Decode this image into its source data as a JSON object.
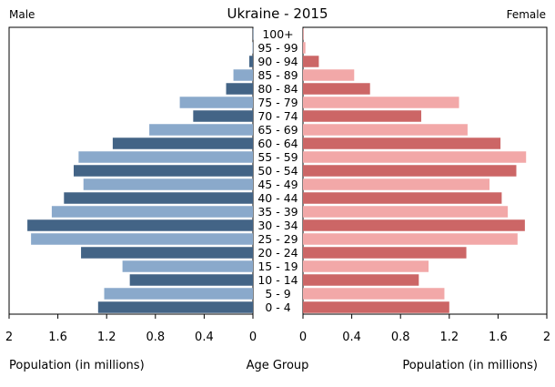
{
  "chart_data": {
    "type": "bar",
    "title": "Ukraine - 2015",
    "male_label": "Male",
    "female_label": "Female",
    "xlabel_left": "Population (in millions)",
    "xlabel_center": "Age Group",
    "xlabel_right": "Population (in millions)",
    "xlim": [
      0,
      2
    ],
    "ticks": [
      "2",
      "1.6",
      "1.2",
      "0.8",
      "0.4",
      "0"
    ],
    "ticks_right": [
      "0",
      "0.4",
      "0.8",
      "1.2",
      "1.6",
      "2"
    ],
    "categories": [
      "100+",
      "95 - 99",
      "90 - 94",
      "85 - 89",
      "80 - 84",
      "75 - 79",
      "70 - 74",
      "65 - 69",
      "60 - 64",
      "55 - 59",
      "50 - 54",
      "45 - 49",
      "40 - 44",
      "35 - 39",
      "30 - 34",
      "25 - 29",
      "20 - 24",
      "15 - 19",
      "10 - 14",
      "5 - 9",
      "0 - 4"
    ],
    "series": [
      {
        "name": "Male",
        "values": [
          0.001,
          0.004,
          0.03,
          0.16,
          0.22,
          0.6,
          0.49,
          0.85,
          1.15,
          1.43,
          1.47,
          1.39,
          1.55,
          1.65,
          1.85,
          1.82,
          1.41,
          1.07,
          1.01,
          1.22,
          1.27
        ]
      },
      {
        "name": "Female",
        "values": [
          0.003,
          0.02,
          0.13,
          0.42,
          0.55,
          1.28,
          0.97,
          1.35,
          1.62,
          1.83,
          1.75,
          1.53,
          1.63,
          1.68,
          1.82,
          1.76,
          1.34,
          1.03,
          0.95,
          1.16,
          1.2
        ]
      }
    ],
    "colors": {
      "male_dark": "#436486",
      "male_light": "#8aa9cb",
      "female_dark": "#cc6666",
      "female_light": "#f2a8a8",
      "axis": "#000000"
    }
  }
}
